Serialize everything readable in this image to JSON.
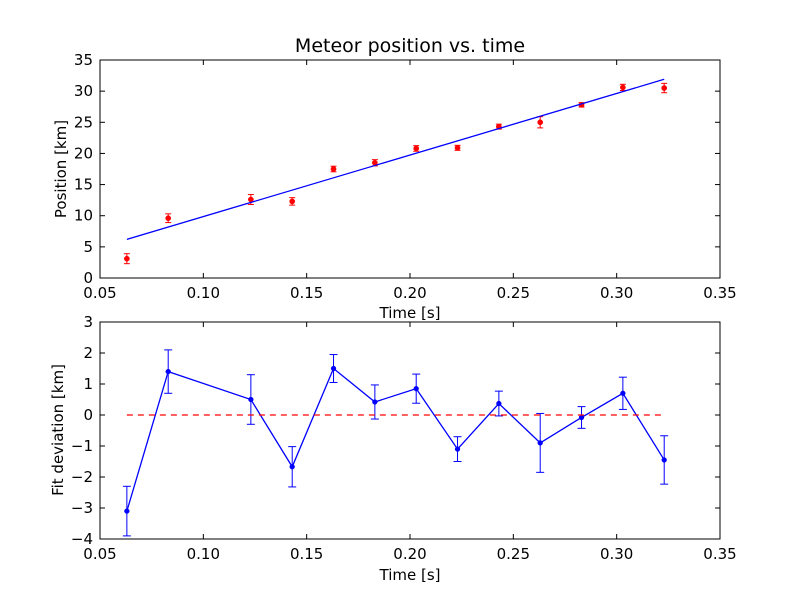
{
  "chart_data": [
    {
      "type": "scatter",
      "title": "Meteor position vs. time",
      "xlabel": "Time [s]",
      "ylabel": "Position [km]",
      "xlim": [
        0.05,
        0.35
      ],
      "ylim": [
        0,
        35
      ],
      "xticks": [
        "0.05",
        "0.10",
        "0.15",
        "0.20",
        "0.25",
        "0.30",
        "0.35"
      ],
      "yticks": [
        "0",
        "5",
        "10",
        "15",
        "20",
        "25",
        "30",
        "35"
      ],
      "grid": false,
      "colors": {
        "points": "#ff0000",
        "fit": "#0000ff"
      },
      "series": [
        {
          "kind": "errorbar-points",
          "x": [
            0.063,
            0.083,
            0.123,
            0.143,
            0.163,
            0.183,
            0.203,
            0.223,
            0.243,
            0.263,
            0.283,
            0.303,
            0.323
          ],
          "y": [
            3.1,
            9.6,
            12.6,
            12.3,
            17.5,
            18.5,
            20.8,
            20.9,
            24.3,
            25.0,
            27.8,
            30.6,
            30.5
          ],
          "yerr": [
            0.8,
            0.7,
            0.8,
            0.6,
            0.45,
            0.5,
            0.45,
            0.4,
            0.4,
            0.9,
            0.35,
            0.5,
            0.75
          ]
        },
        {
          "kind": "fit-line",
          "x": [
            0.063,
            0.323
          ],
          "y": [
            6.2,
            31.9
          ]
        }
      ]
    },
    {
      "type": "line",
      "title": "",
      "xlabel": "Time [s]",
      "ylabel": "Fit deviation [km]",
      "xlim": [
        0.05,
        0.35
      ],
      "ylim": [
        -4,
        3
      ],
      "xticks": [
        "0.05",
        "0.10",
        "0.15",
        "0.20",
        "0.25",
        "0.30",
        "0.35"
      ],
      "yticks": [
        "3",
        "2",
        "1",
        "0",
        "−1",
        "−2",
        "−3",
        "−4"
      ],
      "grid": false,
      "colors": {
        "deviation": "#0000ff",
        "zero": "#ff0000"
      },
      "series": [
        {
          "kind": "errorbar-line",
          "x": [
            0.063,
            0.083,
            0.123,
            0.143,
            0.163,
            0.183,
            0.203,
            0.223,
            0.243,
            0.263,
            0.283,
            0.303,
            0.323
          ],
          "y": [
            -3.1,
            1.4,
            0.5,
            -1.67,
            1.5,
            0.42,
            0.85,
            -1.1,
            0.37,
            -0.9,
            -0.08,
            0.7,
            -1.45
          ],
          "yerr": [
            0.8,
            0.7,
            0.8,
            0.65,
            0.45,
            0.55,
            0.47,
            0.4,
            0.4,
            0.95,
            0.35,
            0.52,
            0.78
          ]
        },
        {
          "kind": "zero-line",
          "x": [
            0.063,
            0.323
          ],
          "y": [
            0,
            0
          ]
        }
      ]
    }
  ]
}
